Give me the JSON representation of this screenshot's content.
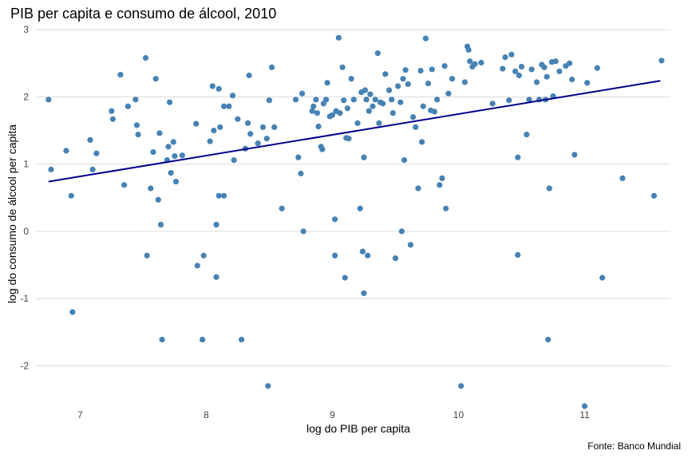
{
  "chart_data": {
    "type": "scatter",
    "title": "PIB per capita e consumo de álcool, 2010",
    "xlabel": "log do PIB per capita",
    "ylabel": "log do consumo de álcool per capita",
    "caption": "Fonte: Banco Mundial",
    "xlim": [
      6.65,
      11.68
    ],
    "ylim": [
      -2.6,
      3.05
    ],
    "xticks": [
      7,
      8,
      9,
      10,
      11
    ],
    "yticks": [
      -2,
      -1,
      0,
      1,
      2,
      3
    ],
    "grid": "horizontal",
    "point_color": "#4682b4",
    "line_color": "#00008b",
    "trend_line": {
      "x": [
        6.75,
        11.6
      ],
      "y": [
        0.74,
        2.24
      ]
    },
    "points": [
      [
        6.75,
        1.96
      ],
      [
        6.77,
        0.92
      ],
      [
        6.89,
        1.2
      ],
      [
        6.93,
        0.53
      ],
      [
        6.94,
        -1.2
      ],
      [
        7.08,
        1.36
      ],
      [
        7.1,
        0.92
      ],
      [
        7.13,
        1.16
      ],
      [
        7.25,
        1.79
      ],
      [
        7.26,
        1.67
      ],
      [
        7.32,
        2.33
      ],
      [
        7.35,
        0.69
      ],
      [
        7.38,
        1.86
      ],
      [
        7.44,
        1.96
      ],
      [
        7.45,
        1.58
      ],
      [
        7.46,
        1.44
      ],
      [
        7.52,
        2.58
      ],
      [
        7.53,
        -0.36
      ],
      [
        7.56,
        0.64
      ],
      [
        7.58,
        1.18
      ],
      [
        7.6,
        2.27
      ],
      [
        7.62,
        0.47
      ],
      [
        7.63,
        1.46
      ],
      [
        7.64,
        0.1
      ],
      [
        7.65,
        -1.61
      ],
      [
        7.69,
        1.06
      ],
      [
        7.7,
        1.26
      ],
      [
        7.71,
        1.92
      ],
      [
        7.72,
        0.87
      ],
      [
        7.74,
        1.33
      ],
      [
        7.75,
        1.12
      ],
      [
        7.76,
        0.74
      ],
      [
        7.81,
        1.13
      ],
      [
        7.92,
        1.6
      ],
      [
        7.93,
        -0.51
      ],
      [
        7.97,
        -1.61
      ],
      [
        7.98,
        -0.36
      ],
      [
        8.03,
        1.34
      ],
      [
        8.05,
        2.16
      ],
      [
        8.06,
        1.5
      ],
      [
        8.08,
        0.1
      ],
      [
        8.08,
        -0.68
      ],
      [
        8.1,
        0.53
      ],
      [
        8.1,
        2.12
      ],
      [
        8.11,
        1.55
      ],
      [
        8.14,
        1.86
      ],
      [
        8.14,
        0.53
      ],
      [
        8.18,
        1.86
      ],
      [
        8.21,
        2.02
      ],
      [
        8.22,
        1.06
      ],
      [
        8.25,
        1.67
      ],
      [
        8.28,
        -1.61
      ],
      [
        8.31,
        1.23
      ],
      [
        8.33,
        1.61
      ],
      [
        8.34,
        2.32
      ],
      [
        8.35,
        1.45
      ],
      [
        8.41,
        1.31
      ],
      [
        8.45,
        1.55
      ],
      [
        8.48,
        1.38
      ],
      [
        8.49,
        -2.3
      ],
      [
        8.5,
        1.95
      ],
      [
        8.52,
        2.44
      ],
      [
        8.54,
        1.55
      ],
      [
        8.6,
        0.34
      ],
      [
        8.71,
        1.96
      ],
      [
        8.73,
        1.1
      ],
      [
        8.75,
        0.86
      ],
      [
        8.76,
        2.05
      ],
      [
        8.77,
        0.0
      ],
      [
        8.84,
        1.79
      ],
      [
        8.85,
        1.86
      ],
      [
        8.87,
        1.96
      ],
      [
        8.88,
        1.76
      ],
      [
        8.89,
        1.56
      ],
      [
        8.91,
        1.26
      ],
      [
        8.92,
        1.22
      ],
      [
        8.93,
        1.9
      ],
      [
        8.95,
        1.96
      ],
      [
        8.96,
        2.21
      ],
      [
        8.98,
        1.71
      ],
      [
        9.0,
        1.73
      ],
      [
        9.02,
        0.18
      ],
      [
        9.02,
        -0.36
      ],
      [
        9.03,
        1.79
      ],
      [
        9.05,
        2.88
      ],
      [
        9.06,
        1.76
      ],
      [
        9.08,
        2.44
      ],
      [
        9.09,
        1.95
      ],
      [
        9.1,
        -0.69
      ],
      [
        9.11,
        1.39
      ],
      [
        9.12,
        1.83
      ],
      [
        9.13,
        1.38
      ],
      [
        9.15,
        2.27
      ],
      [
        9.17,
        1.96
      ],
      [
        9.2,
        1.61
      ],
      [
        9.22,
        0.34
      ],
      [
        9.23,
        2.07
      ],
      [
        9.24,
        -0.3
      ],
      [
        9.25,
        1.1
      ],
      [
        9.25,
        -0.92
      ],
      [
        9.26,
        2.1
      ],
      [
        9.27,
        1.96
      ],
      [
        9.28,
        -0.36
      ],
      [
        9.29,
        1.79
      ],
      [
        9.3,
        2.04
      ],
      [
        9.32,
        1.86
      ],
      [
        9.34,
        1.96
      ],
      [
        9.36,
        2.65
      ],
      [
        9.37,
        1.61
      ],
      [
        9.38,
        1.92
      ],
      [
        9.4,
        1.9
      ],
      [
        9.42,
        2.34
      ],
      [
        9.45,
        2.1
      ],
      [
        9.47,
        1.96
      ],
      [
        9.48,
        1.76
      ],
      [
        9.5,
        -0.4
      ],
      [
        9.52,
        2.16
      ],
      [
        9.54,
        1.92
      ],
      [
        9.55,
        0.0
      ],
      [
        9.56,
        2.27
      ],
      [
        9.57,
        1.06
      ],
      [
        9.58,
        2.4
      ],
      [
        9.6,
        2.19
      ],
      [
        9.62,
        -0.2
      ],
      [
        9.64,
        1.7
      ],
      [
        9.66,
        1.55
      ],
      [
        9.68,
        0.64
      ],
      [
        9.7,
        2.39
      ],
      [
        9.71,
        1.33
      ],
      [
        9.72,
        1.86
      ],
      [
        9.74,
        2.87
      ],
      [
        9.76,
        2.2
      ],
      [
        9.78,
        1.8
      ],
      [
        9.79,
        2.41
      ],
      [
        9.81,
        1.78
      ],
      [
        9.83,
        1.96
      ],
      [
        9.85,
        0.69
      ],
      [
        9.87,
        0.79
      ],
      [
        9.89,
        2.46
      ],
      [
        9.9,
        0.34
      ],
      [
        9.92,
        2.05
      ],
      [
        9.95,
        2.27
      ],
      [
        10.02,
        -2.3
      ],
      [
        10.05,
        2.22
      ],
      [
        10.07,
        2.75
      ],
      [
        10.08,
        2.7
      ],
      [
        10.09,
        2.53
      ],
      [
        10.11,
        2.45
      ],
      [
        10.13,
        2.49
      ],
      [
        10.18,
        2.51
      ],
      [
        10.27,
        1.9
      ],
      [
        10.35,
        2.42
      ],
      [
        10.37,
        2.59
      ],
      [
        10.4,
        1.95
      ],
      [
        10.42,
        2.63
      ],
      [
        10.45,
        2.38
      ],
      [
        10.47,
        -0.35
      ],
      [
        10.47,
        1.1
      ],
      [
        10.48,
        2.32
      ],
      [
        10.5,
        2.45
      ],
      [
        10.54,
        1.44
      ],
      [
        10.56,
        1.96
      ],
      [
        10.58,
        2.41
      ],
      [
        10.62,
        2.22
      ],
      [
        10.64,
        1.96
      ],
      [
        10.66,
        2.48
      ],
      [
        10.68,
        2.44
      ],
      [
        10.69,
        1.96
      ],
      [
        10.7,
        2.3
      ],
      [
        10.71,
        -1.61
      ],
      [
        10.72,
        0.64
      ],
      [
        10.74,
        2.52
      ],
      [
        10.75,
        2.01
      ],
      [
        10.77,
        2.53
      ],
      [
        10.8,
        2.38
      ],
      [
        10.85,
        2.46
      ],
      [
        10.88,
        2.5
      ],
      [
        10.9,
        2.26
      ],
      [
        10.92,
        1.14
      ],
      [
        11.0,
        -2.6
      ],
      [
        11.02,
        2.21
      ],
      [
        11.1,
        2.43
      ],
      [
        11.14,
        -0.69
      ],
      [
        11.3,
        0.79
      ],
      [
        11.55,
        0.53
      ],
      [
        11.61,
        2.54
      ]
    ]
  }
}
